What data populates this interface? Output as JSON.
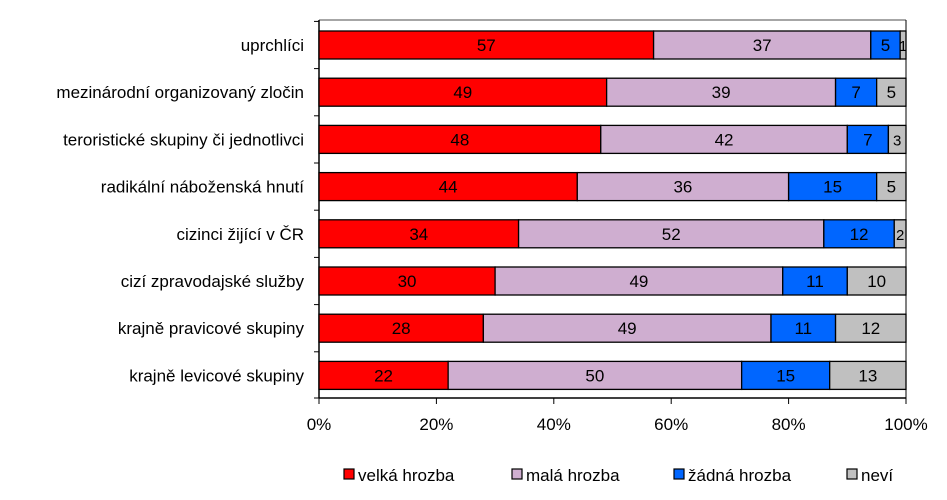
{
  "chart_data": {
    "type": "bar",
    "orientation": "horizontal",
    "stacked": true,
    "categories": [
      "uprchlíci",
      "mezinárodní organizovaný zločin",
      "teroristické skupiny či jednotlivci",
      "radikální náboženská hnutí",
      "cizinci žijící v ČR",
      "cizí zpravodajské služby",
      "krajně pravicové skupiny",
      "krajně levicové skupiny"
    ],
    "series": [
      {
        "name": "velká hrozba",
        "color": "#ff0000",
        "values": [
          57,
          49,
          48,
          44,
          34,
          30,
          28,
          22
        ]
      },
      {
        "name": "malá hrozba",
        "color": "#cfaed0",
        "values": [
          37,
          39,
          42,
          36,
          52,
          49,
          49,
          50
        ]
      },
      {
        "name": "žádná hrozba",
        "color": "#0066ff",
        "values": [
          5,
          7,
          7,
          15,
          12,
          11,
          11,
          15
        ]
      },
      {
        "name": "neví",
        "color": "#c0c0c0",
        "values": [
          1,
          5,
          3,
          5,
          2,
          10,
          12,
          13
        ]
      }
    ],
    "xticks": [
      "0%",
      "20%",
      "40%",
      "60%",
      "80%",
      "100%"
    ],
    "xlim": [
      0,
      100
    ],
    "title": "",
    "xlabel": "",
    "ylabel": "",
    "legend_position": "bottom",
    "grid": false
  }
}
